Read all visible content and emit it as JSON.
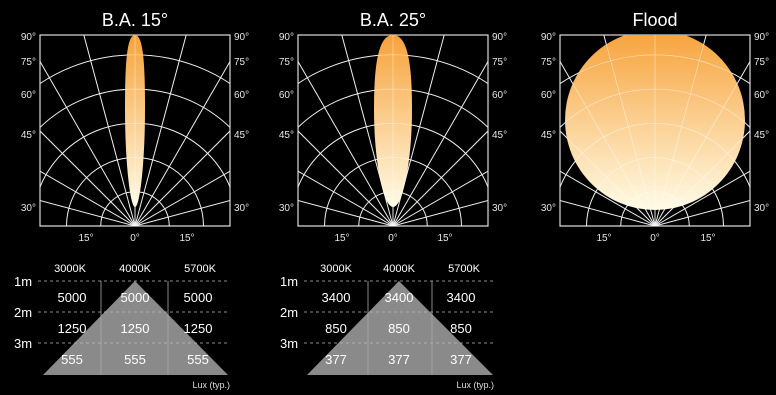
{
  "photometric": {
    "angle_labels": {
      "left": [
        "90°",
        "75°",
        "60°",
        "45°",
        "30°"
      ],
      "right": [
        "90°",
        "75°",
        "60°",
        "45°",
        "30°"
      ],
      "bottom": [
        "15°",
        "0°",
        "15°"
      ]
    },
    "gradient": {
      "top": "#f7a23a",
      "bottom": "#fffbe6"
    },
    "panels": [
      {
        "title": "B.A. 15°",
        "beam": "narrow"
      },
      {
        "title": "B.A. 25°",
        "beam": "medium"
      },
      {
        "title": "Flood",
        "beam": "flood"
      }
    ]
  },
  "lux_tables": [
    {
      "columns": [
        "3000K",
        "4000K",
        "5700K"
      ],
      "distances": [
        "1m",
        "2m",
        "3m"
      ],
      "rows": [
        [
          "5000",
          "5000",
          "5000"
        ],
        [
          "1250",
          "1250",
          "1250"
        ],
        [
          "555",
          "555",
          "555"
        ]
      ],
      "unit": "Lux (typ.)"
    },
    {
      "columns": [
        "3000K",
        "4000K",
        "5700K"
      ],
      "distances": [
        "1m",
        "2m",
        "3m"
      ],
      "rows": [
        [
          "3400",
          "3400",
          "3400"
        ],
        [
          "850",
          "850",
          "850"
        ],
        [
          "377",
          "377",
          "377"
        ]
      ],
      "unit": "Lux (typ.)"
    }
  ]
}
